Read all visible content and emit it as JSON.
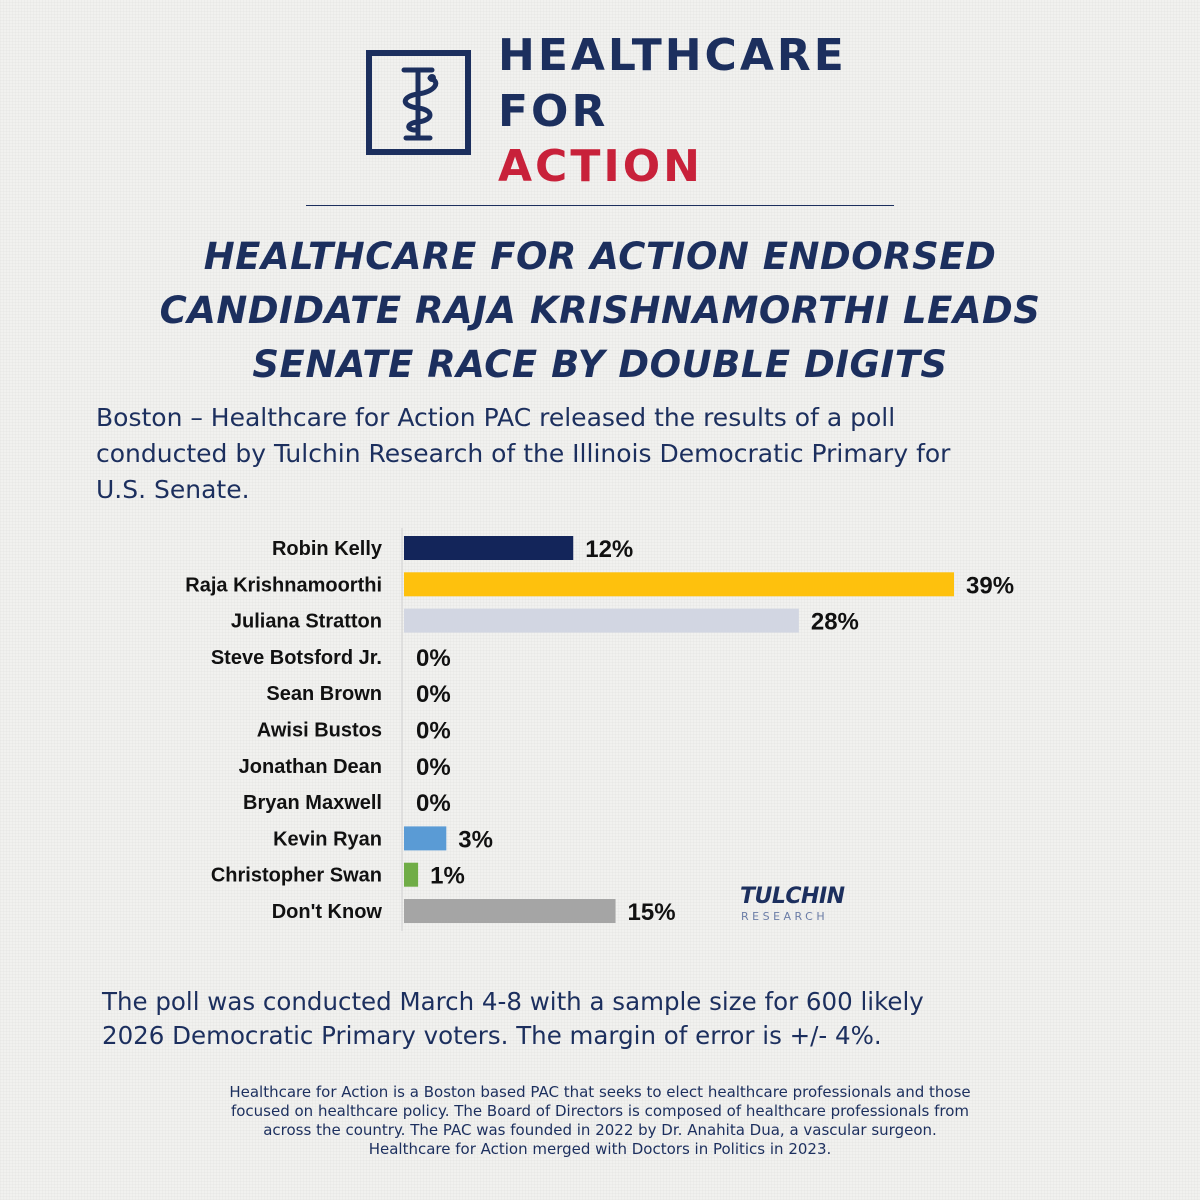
{
  "logo": {
    "line1": "HEALTHCARE",
    "line2": "FOR",
    "line3": "ACTION",
    "icon": "caduceus-icon",
    "colors": {
      "navy": "#1c2f5e",
      "red": "#c8213a"
    }
  },
  "headline": [
    "HEALTHCARE FOR ACTION ENDORSED",
    "CANDIDATE RAJA KRISHNAMORTHI LEADS",
    "SENATE RACE BY DOUBLE DIGITS"
  ],
  "intro": [
    "Boston – Healthcare for Action PAC released the results of a poll",
    "conducted by Tulchin Research of the Illinois Democratic Primary for",
    "U.S. Senate."
  ],
  "chart_data": {
    "type": "bar",
    "orientation": "horizontal",
    "categories": [
      "Robin Kelly",
      "Raja Krishnamoorthi",
      "Juliana Stratton",
      "Steve Botsford Jr.",
      "Sean Brown",
      "Awisi Bustos",
      "Jonathan Dean",
      "Bryan Maxwell",
      "Kevin Ryan",
      "Christopher Swan",
      "Don't Know"
    ],
    "values": [
      12,
      39,
      28,
      0,
      0,
      0,
      0,
      0,
      3,
      1,
      15
    ],
    "data_labels": [
      "12%",
      "39%",
      "28%",
      "0%",
      "0%",
      "0%",
      "0%",
      "0%",
      "3%",
      "1%",
      "15%"
    ],
    "colors": [
      "#13255a",
      "#fec10d",
      "#d2d6e2",
      "#d2d6e2",
      "#d2d6e2",
      "#d2d6e2",
      "#d2d6e2",
      "#d2d6e2",
      "#5a9bd5",
      "#70ad47",
      "#a5a5a5"
    ],
    "xlim": [
      0,
      39
    ],
    "grid": false,
    "title": "",
    "xlabel": "",
    "ylabel": ""
  },
  "source_logo": {
    "word": "TULCHIN",
    "subword": "RESEARCH"
  },
  "poll_note": [
    "The poll was conducted March 4-8 with a sample size for 600 likely",
    "2026 Democratic Primary voters. The margin of error is +/- 4%."
  ],
  "about": [
    "Healthcare for Action is a Boston based PAC that seeks to elect healthcare professionals and those",
    "focused on healthcare policy. The Board of Directors is composed of healthcare professionals from",
    "across the country. The PAC was founded in 2022 by Dr. Anahita Dua, a vascular surgeon.",
    "Healthcare for Action merged with Doctors in Politics in 2023."
  ]
}
